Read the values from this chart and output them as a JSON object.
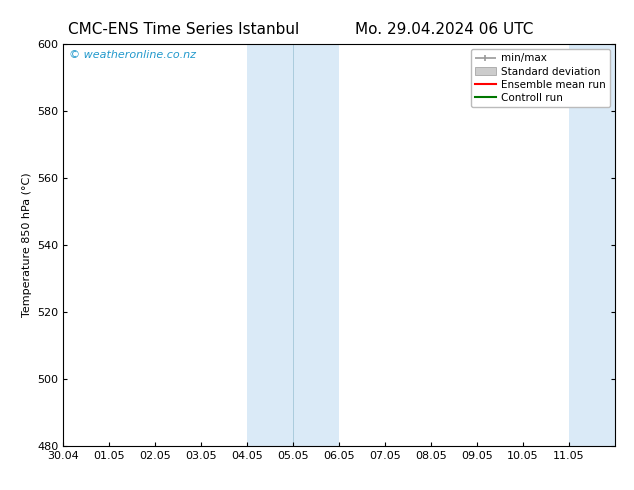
{
  "title_left": "CMC-ENS Time Series Istanbul",
  "title_right": "Mo. 29.04.2024 06 UTC",
  "ylabel": "Temperature 850 hPa (°C)",
  "xlabel": "",
  "xlim_dates": [
    "30.04",
    "01.05",
    "02.05",
    "03.05",
    "04.05",
    "05.05",
    "06.05",
    "07.05",
    "08.05",
    "09.05",
    "10.05",
    "11.05"
  ],
  "xlim_values": [
    0,
    12
  ],
  "ylim": [
    480,
    600
  ],
  "yticks": [
    480,
    500,
    520,
    540,
    560,
    580,
    600
  ],
  "background_color": "#ffffff",
  "plot_bg_color": "#ffffff",
  "shaded_regions": [
    {
      "xstart": 4.0,
      "xend": 6.0,
      "color": "#daeaf7"
    },
    {
      "xstart": 11.0,
      "xend": 12.0,
      "color": "#daeaf7"
    }
  ],
  "shaded_dividers": [
    5.0
  ],
  "watermark_text": "© weatheronline.co.nz",
  "watermark_color": "#2299cc",
  "legend_entries": [
    {
      "label": "min/max",
      "color": "#999999",
      "style": "minmax"
    },
    {
      "label": "Standard deviation",
      "color": "#cccccc",
      "style": "stddev"
    },
    {
      "label": "Ensemble mean run",
      "color": "#ff0000",
      "style": "line"
    },
    {
      "label": "Controll run",
      "color": "#007700",
      "style": "line"
    }
  ],
  "font_family": "DejaVu Sans",
  "title_fontsize": 11,
  "tick_fontsize": 8,
  "legend_fontsize": 7.5,
  "ylabel_fontsize": 8,
  "watermark_fontsize": 8
}
